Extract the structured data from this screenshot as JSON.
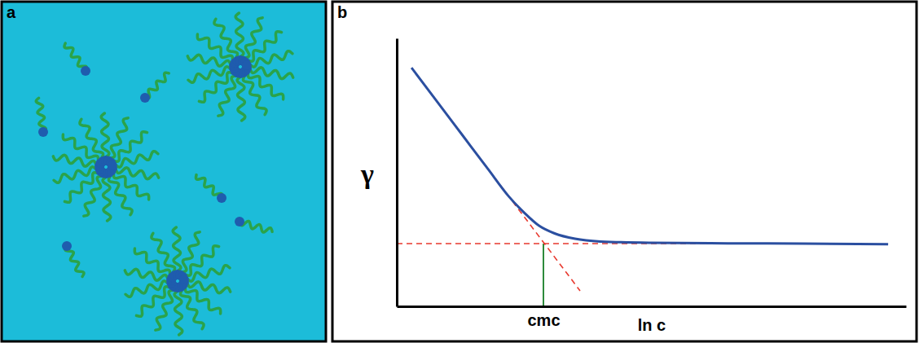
{
  "panels": [
    {
      "letter": "a"
    },
    {
      "letter": "b"
    }
  ],
  "chart_data": {
    "type": "line",
    "x_label": "ln c",
    "y_label": "γ",
    "xlim": [
      0,
      10
    ],
    "ylim": [
      0,
      10
    ],
    "xticks": [
      {
        "value": 2.88,
        "label": "cmc"
      }
    ],
    "tick_labels": "x",
    "series": [
      {
        "color": "#2b4fa0",
        "line_style": "solid",
        "x": [
          0.29,
          0.8,
          1.3,
          1.8,
          2.2,
          2.5,
          2.8,
          3.1,
          3.5,
          4.0,
          5.0,
          6.5,
          8.0,
          9.65
        ],
        "values": [
          8.9,
          7.62,
          6.36,
          5.1,
          4.1,
          3.5,
          3.0,
          2.72,
          2.52,
          2.42,
          2.37,
          2.35,
          2.34,
          2.32
        ]
      },
      {
        "color": "#e8392e",
        "line_style": "dashed",
        "x": [
          1.0,
          3.6
        ],
        "values": [
          7.12,
          0.58
        ]
      },
      {
        "color": "#e8392e",
        "line_style": "dashed",
        "x": [
          0,
          6.6
        ],
        "values": [
          2.34,
          2.34
        ]
      }
    ]
  }
}
